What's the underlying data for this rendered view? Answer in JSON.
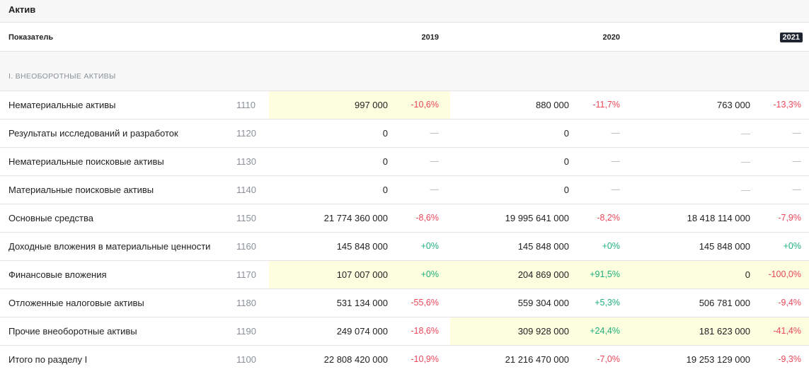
{
  "title": "Актив",
  "header": {
    "indicator": "Показатель",
    "years": [
      "2019",
      "2020",
      "2021"
    ]
  },
  "section": "I. ВНЕОБОРОТНЫЕ АКТИВЫ",
  "rows": [
    {
      "name": "Нематериальные активы",
      "code": "1110",
      "highlight": [
        true,
        false,
        false
      ],
      "cells": [
        [
          "997 000",
          "-10,6%",
          "neg"
        ],
        [
          "880 000",
          "-11,7%",
          "neg"
        ],
        [
          "763 000",
          "-13,3%",
          "neg"
        ]
      ]
    },
    {
      "name": "Результаты исследований и разработок",
      "code": "1120",
      "highlight": [
        false,
        false,
        false
      ],
      "cells": [
        [
          "0",
          "—",
          "dash"
        ],
        [
          "0",
          "—",
          "dash"
        ],
        [
          "—",
          "—",
          "dash"
        ]
      ]
    },
    {
      "name": "Нематериальные поисковые активы",
      "code": "1130",
      "highlight": [
        false,
        false,
        false
      ],
      "cells": [
        [
          "0",
          "—",
          "dash"
        ],
        [
          "0",
          "—",
          "dash"
        ],
        [
          "—",
          "—",
          "dash"
        ]
      ]
    },
    {
      "name": "Материальные поисковые активы",
      "code": "1140",
      "highlight": [
        false,
        false,
        false
      ],
      "cells": [
        [
          "0",
          "—",
          "dash"
        ],
        [
          "0",
          "—",
          "dash"
        ],
        [
          "—",
          "—",
          "dash"
        ]
      ]
    },
    {
      "name": "Основные средства",
      "code": "1150",
      "highlight": [
        false,
        false,
        false
      ],
      "cells": [
        [
          "21 774 360 000",
          "-8,6%",
          "neg"
        ],
        [
          "19 995 641 000",
          "-8,2%",
          "neg"
        ],
        [
          "18 418 114 000",
          "-7,9%",
          "neg"
        ]
      ]
    },
    {
      "name": "Доходные вложения в материальные ценности",
      "code": "1160",
      "highlight": [
        false,
        false,
        false
      ],
      "cells": [
        [
          "145 848 000",
          "+0%",
          "pos"
        ],
        [
          "145 848 000",
          "+0%",
          "pos"
        ],
        [
          "145 848 000",
          "+0%",
          "pos"
        ]
      ]
    },
    {
      "name": "Финансовые вложения",
      "code": "1170",
      "highlight": [
        true,
        true,
        true
      ],
      "cells": [
        [
          "107 007 000",
          "+0%",
          "pos"
        ],
        [
          "204 869 000",
          "+91,5%",
          "pos"
        ],
        [
          "0",
          "-100,0%",
          "neg"
        ]
      ]
    },
    {
      "name": "Отложенные налоговые активы",
      "code": "1180",
      "highlight": [
        false,
        false,
        false
      ],
      "cells": [
        [
          "531 134 000",
          "-55,6%",
          "neg"
        ],
        [
          "559 304 000",
          "+5,3%",
          "pos"
        ],
        [
          "506 781 000",
          "-9,4%",
          "neg"
        ]
      ]
    },
    {
      "name": "Прочие внеоборотные активы",
      "code": "1190",
      "highlight": [
        false,
        true,
        true
      ],
      "cells": [
        [
          "249 074 000",
          "-18,6%",
          "neg"
        ],
        [
          "309 928 000",
          "+24,4%",
          "pos"
        ],
        [
          "181 623 000",
          "-41,4%",
          "neg"
        ]
      ]
    },
    {
      "name": "Итого по разделу I",
      "code": "1100",
      "highlight": [
        false,
        false,
        false
      ],
      "cells": [
        [
          "22 808 420 000",
          "-10,9%",
          "neg"
        ],
        [
          "21 216 470 000",
          "-7,0%",
          "neg"
        ],
        [
          "19 253 129 000",
          "-9,3%",
          "neg"
        ]
      ]
    }
  ],
  "colors": {
    "negative": "#e8475a",
    "positive": "#1fae7a",
    "highlight": "#fdfde0",
    "year_badge": "#1f2530"
  }
}
